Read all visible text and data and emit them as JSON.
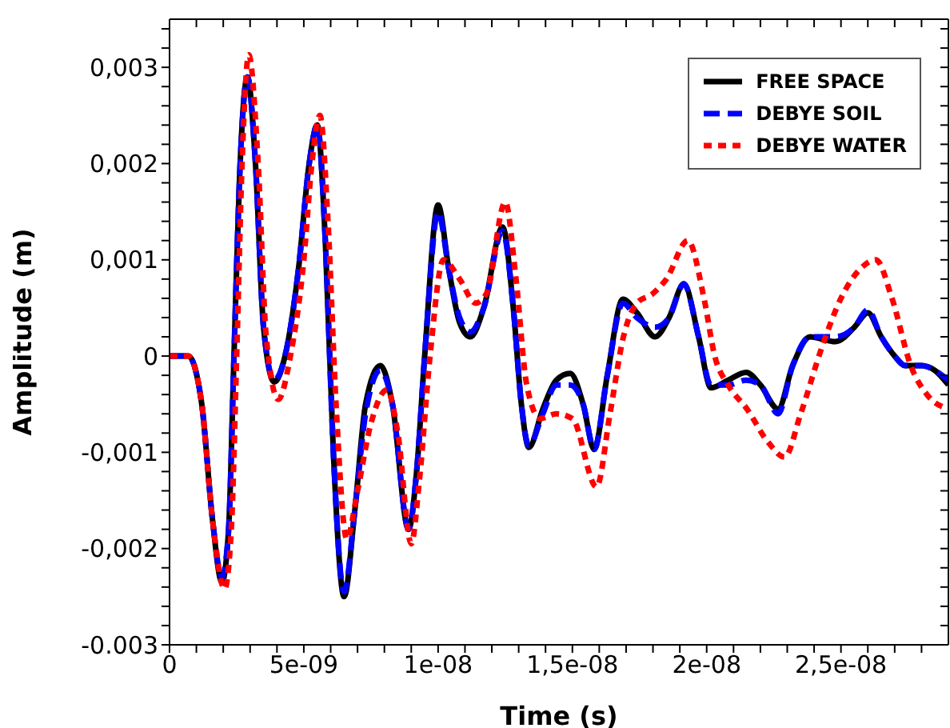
{
  "chart_data": {
    "type": "line",
    "xlabel": "Time (s)",
    "ylabel": "Amplitude (m)",
    "xlim": [
      0,
      2.9e-08
    ],
    "ylim": [
      -0.003,
      0.0035
    ],
    "xticks": [
      {
        "value": 0,
        "label": "0"
      },
      {
        "value": 1e-09,
        "label": null
      },
      {
        "value": 2e-09,
        "label": null
      },
      {
        "value": 3e-09,
        "label": null
      },
      {
        "value": 4e-09,
        "label": null
      },
      {
        "value": 5e-09,
        "label": "5e-09"
      },
      {
        "value": 6e-09,
        "label": null
      },
      {
        "value": 7e-09,
        "label": null
      },
      {
        "value": 8e-09,
        "label": null
      },
      {
        "value": 9e-09,
        "label": null
      },
      {
        "value": 1e-08,
        "label": "1e-08"
      },
      {
        "value": 1.1e-08,
        "label": null
      },
      {
        "value": 1.2e-08,
        "label": null
      },
      {
        "value": 1.3e-08,
        "label": null
      },
      {
        "value": 1.4e-08,
        "label": null
      },
      {
        "value": 1.5e-08,
        "label": "1,5e-08"
      },
      {
        "value": 1.6e-08,
        "label": null
      },
      {
        "value": 1.7e-08,
        "label": null
      },
      {
        "value": 1.8e-08,
        "label": null
      },
      {
        "value": 1.9e-08,
        "label": null
      },
      {
        "value": 2e-08,
        "label": "2e-08"
      },
      {
        "value": 2.1e-08,
        "label": null
      },
      {
        "value": 2.2e-08,
        "label": null
      },
      {
        "value": 2.3e-08,
        "label": null
      },
      {
        "value": 2.4e-08,
        "label": null
      },
      {
        "value": 2.5e-08,
        "label": "2,5e-08"
      },
      {
        "value": 2.6e-08,
        "label": null
      },
      {
        "value": 2.7e-08,
        "label": null
      },
      {
        "value": 2.8e-08,
        "label": null
      }
    ],
    "yticks": [
      {
        "value": -0.003,
        "label": "-0.003"
      },
      {
        "value": -0.0028,
        "label": null
      },
      {
        "value": -0.0026,
        "label": null
      },
      {
        "value": -0.0024,
        "label": null
      },
      {
        "value": -0.0022,
        "label": null
      },
      {
        "value": -0.002,
        "label": "-0,002"
      },
      {
        "value": -0.0018,
        "label": null
      },
      {
        "value": -0.0016,
        "label": null
      },
      {
        "value": -0.0014,
        "label": null
      },
      {
        "value": -0.0012,
        "label": null
      },
      {
        "value": -0.001,
        "label": "-0,001"
      },
      {
        "value": -0.0008,
        "label": null
      },
      {
        "value": -0.0006,
        "label": null
      },
      {
        "value": -0.0004,
        "label": null
      },
      {
        "value": -0.0002,
        "label": null
      },
      {
        "value": 0,
        "label": "0"
      },
      {
        "value": 0.0002,
        "label": null
      },
      {
        "value": 0.0004,
        "label": null
      },
      {
        "value": 0.0006,
        "label": null
      },
      {
        "value": 0.0008,
        "label": null
      },
      {
        "value": 0.001,
        "label": "0,001"
      },
      {
        "value": 0.0012,
        "label": null
      },
      {
        "value": 0.0014,
        "label": null
      },
      {
        "value": 0.0016,
        "label": null
      },
      {
        "value": 0.0018,
        "label": null
      },
      {
        "value": 0.002,
        "label": "0,002"
      },
      {
        "value": 0.0022,
        "label": null
      },
      {
        "value": 0.0024,
        "label": null
      },
      {
        "value": 0.0026,
        "label": null
      },
      {
        "value": 0.0028,
        "label": null
      },
      {
        "value": 0.003,
        "label": "0,003"
      },
      {
        "value": 0.0032,
        "label": null
      },
      {
        "value": 0.0034,
        "label": null
      }
    ],
    "legend": "top right",
    "marker": "none",
    "series": [
      {
        "name": "FREE SPACE",
        "color": "#000000",
        "line_style": "solid",
        "x": [
          0,
          7e-10,
          1.2e-09,
          1.6e-09,
          1.95e-09,
          2.2e-09,
          2.4e-09,
          2.6e-09,
          2.9e-09,
          3.2e-09,
          3.5e-09,
          3.9e-09,
          4.3e-09,
          4.8e-09,
          5.2e-09,
          5.5e-09,
          5.8e-09,
          6.1e-09,
          6.5e-09,
          6.9e-09,
          7.3e-09,
          7.85e-09,
          8.3e-09,
          8.9e-09,
          9.2e-09,
          9.5e-09,
          1e-08,
          1.04e-08,
          1.08e-08,
          1.12e-08,
          1.17e-08,
          1.24e-08,
          1.28e-08,
          1.31e-08,
          1.338e-08,
          1.39e-08,
          1.44e-08,
          1.492e-08,
          1.54e-08,
          1.581e-08,
          1.63e-08,
          1.688e-08,
          1.74e-08,
          1.808e-08,
          1.86e-08,
          1.915e-08,
          1.97e-08,
          2.016e-08,
          2.08e-08,
          2.147e-08,
          2.2e-08,
          2.266e-08,
          2.32e-08,
          2.385e-08,
          2.48e-08,
          2.55e-08,
          2.6e-08,
          2.65e-08,
          2.7e-08,
          2.74e-08,
          2.8e-08,
          2.85e-08,
          2.9e-08
        ],
        "values": [
          0,
          0,
          -0.0005,
          -0.0017,
          -0.00235,
          -0.0018,
          0,
          0.0018,
          0.0029,
          0.002,
          0.0003,
          -0.00027,
          0,
          0.0009,
          0.002,
          0.0024,
          0.0012,
          -0.001,
          -0.0025,
          -0.0016,
          -0.0005,
          -0.0001,
          -0.0005,
          -0.0018,
          -0.0012,
          0,
          0.00157,
          0.0009,
          0.00035,
          0.0002,
          0.0005,
          0.00134,
          0.0005,
          -0.0005,
          -0.00095,
          -0.00055,
          -0.00025,
          -0.00018,
          -0.0005,
          -0.00097,
          -0.0002,
          0.00059,
          0.00045,
          0.0002,
          0.0004,
          0.00075,
          0.0002,
          -0.00033,
          -0.00025,
          -0.00017,
          -0.0003,
          -0.00055,
          -0.0001,
          0.0002,
          0.00015,
          0.0003,
          0.00045,
          0.0002,
          0,
          -0.0001,
          -0.0001,
          -0.00015,
          -0.0003
        ]
      },
      {
        "name": "DEBYE SOIL",
        "color": "#0000ff",
        "line_style": "dashed",
        "x": [
          0,
          7e-10,
          1.2e-09,
          1.6e-09,
          1.95e-09,
          2.2e-09,
          2.4e-09,
          2.6e-09,
          2.9e-09,
          3.2e-09,
          3.5e-09,
          3.9e-09,
          4.3e-09,
          4.8e-09,
          5.2e-09,
          5.5e-09,
          5.8e-09,
          6.1e-09,
          6.5e-09,
          6.9e-09,
          7.3e-09,
          7.85e-09,
          8.3e-09,
          8.9e-09,
          9.2e-09,
          9.5e-09,
          1e-08,
          1.04e-08,
          1.08e-08,
          1.12e-08,
          1.17e-08,
          1.24e-08,
          1.28e-08,
          1.31e-08,
          1.338e-08,
          1.39e-08,
          1.44e-08,
          1.492e-08,
          1.54e-08,
          1.581e-08,
          1.63e-08,
          1.688e-08,
          1.74e-08,
          1.808e-08,
          1.86e-08,
          1.915e-08,
          1.97e-08,
          2.016e-08,
          2.08e-08,
          2.147e-08,
          2.2e-08,
          2.266e-08,
          2.32e-08,
          2.385e-08,
          2.48e-08,
          2.55e-08,
          2.6e-08,
          2.65e-08,
          2.7e-08,
          2.74e-08,
          2.8e-08,
          2.85e-08,
          2.9e-08
        ],
        "values": [
          0,
          0,
          -0.0005,
          -0.0017,
          -0.0023,
          -0.0018,
          0,
          0.0018,
          0.0029,
          0.002,
          0.0003,
          -0.00025,
          0,
          0.0009,
          0.002,
          0.0024,
          0.0012,
          -0.001,
          -0.00245,
          -0.0016,
          -0.0006,
          -0.00015,
          -0.0005,
          -0.0018,
          -0.0012,
          0,
          0.0015,
          0.0009,
          0.0004,
          0.00025,
          0.0005,
          0.0013,
          0.0005,
          -0.0005,
          -0.00093,
          -0.0006,
          -0.0003,
          -0.0003,
          -0.0005,
          -0.00097,
          -0.0002,
          0.00055,
          0.0004,
          0.0003,
          0.0004,
          0.00075,
          0.0002,
          -0.0003,
          -0.0003,
          -0.00025,
          -0.0003,
          -0.0006,
          -0.0001,
          0.0002,
          0.0002,
          0.0003,
          0.00048,
          0.0002,
          0,
          -0.0001,
          -0.0001,
          -0.00015,
          -0.00025
        ]
      },
      {
        "name": "DEBYE WATER",
        "color": "#ff0000",
        "line_style": "dotted",
        "x": [
          0,
          7e-10,
          1.2e-09,
          1.6e-09,
          2.05e-09,
          2.3e-09,
          2.5e-09,
          2.7e-09,
          2.95e-09,
          3.3e-09,
          3.6e-09,
          4.05e-09,
          4.5e-09,
          5e-09,
          5.3e-09,
          5.6e-09,
          5.9e-09,
          6.2e-09,
          6.6e-09,
          7e-09,
          7.5e-09,
          8.1e-09,
          8.5e-09,
          9e-09,
          9.3e-09,
          9.7e-09,
          1.02e-08,
          1.08e-08,
          1.14e-08,
          1.18e-08,
          1.25e-08,
          1.29e-08,
          1.33e-08,
          1.38e-08,
          1.44e-08,
          1.5e-08,
          1.59e-08,
          1.64e-08,
          1.69e-08,
          1.74e-08,
          1.8e-08,
          1.85e-08,
          1.93e-08,
          1.99e-08,
          2.03e-08,
          2.08e-08,
          2.15e-08,
          2.23e-08,
          2.29e-08,
          2.35e-08,
          2.43e-08,
          2.5e-08,
          2.57e-08,
          2.63e-08,
          2.69e-08,
          2.76e-08,
          2.82e-08,
          2.9e-08
        ],
        "values": [
          0,
          0,
          -0.0005,
          -0.0017,
          -0.00242,
          -0.0018,
          0,
          0.002,
          0.00313,
          0.002,
          0.0002,
          -0.00045,
          0,
          0.001,
          0.002,
          0.0025,
          0.0014,
          -0.0005,
          -0.0019,
          -0.0014,
          -0.0007,
          -0.00035,
          -0.0008,
          -0.00195,
          -0.0013,
          0,
          0.001,
          0.0008,
          0.00055,
          0.00065,
          0.0016,
          0.0008,
          -0.0003,
          -0.00065,
          -0.0006,
          -0.00065,
          -0.00136,
          -0.0006,
          0.0002,
          0.00055,
          0.00065,
          0.0008,
          0.0012,
          0.0006,
          0,
          -0.0003,
          -0.00055,
          -0.0009,
          -0.00105,
          -0.0006,
          0.0001,
          0.0006,
          0.0009,
          0.001,
          0.0006,
          -0.0001,
          -0.0004,
          -0.00055
        ]
      }
    ]
  }
}
